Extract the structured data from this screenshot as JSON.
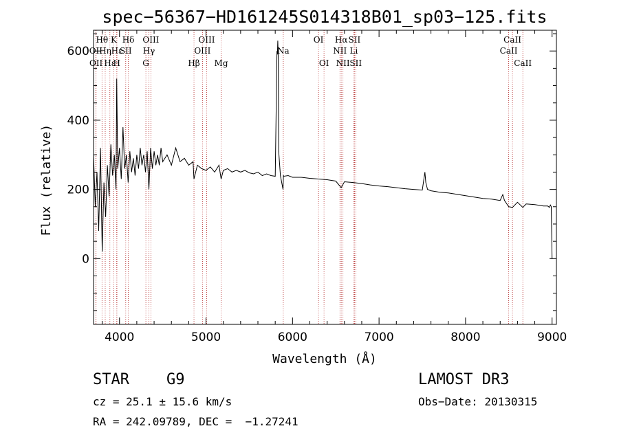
{
  "chart_data": {
    "type": "line",
    "title": "spec−56367−HD161245S014318B01_sp03−125.fits",
    "xlabel": "Wavelength (Å)",
    "ylabel": "Flux (relative)",
    "xlim": [
      3700,
      9050
    ],
    "ylim": [
      -190,
      660
    ],
    "xticks": [
      4000,
      5000,
      6000,
      7000,
      8000,
      9000
    ],
    "yticks": [
      0,
      200,
      400,
      600
    ],
    "series": [
      {
        "name": "flux",
        "x": [
          3700,
          3720,
          3740,
          3760,
          3780,
          3800,
          3820,
          3840,
          3860,
          3880,
          3900,
          3920,
          3940,
          3960,
          3968,
          3980,
          4000,
          4020,
          4040,
          4060,
          4080,
          4100,
          4120,
          4140,
          4160,
          4180,
          4200,
          4220,
          4240,
          4260,
          4280,
          4300,
          4320,
          4340,
          4360,
          4380,
          4400,
          4420,
          4440,
          4460,
          4480,
          4500,
          4550,
          4600,
          4650,
          4700,
          4750,
          4800,
          4850,
          4861,
          4900,
          4950,
          5000,
          5050,
          5100,
          5150,
          5175,
          5200,
          5250,
          5300,
          5350,
          5400,
          5450,
          5500,
          5550,
          5600,
          5650,
          5700,
          5750,
          5800,
          5820,
          5825,
          5830,
          5835,
          5840,
          5860,
          5890,
          5895,
          5900,
          5950,
          6000,
          6100,
          6200,
          6300,
          6400,
          6500,
          6563,
          6600,
          6700,
          6800,
          6900,
          7000,
          7100,
          7200,
          7300,
          7400,
          7500,
          7530,
          7540,
          7560,
          7600,
          7700,
          7800,
          7900,
          8000,
          8100,
          8200,
          8300,
          8400,
          8430,
          8450,
          8498,
          8542,
          8600,
          8662,
          8700,
          8800,
          8900,
          8950,
          8970,
          8980,
          8990,
          9000
        ],
        "values": [
          300,
          150,
          250,
          80,
          320,
          20,
          220,
          120,
          270,
          180,
          330,
          240,
          300,
          200,
          520,
          260,
          320,
          230,
          380,
          260,
          300,
          220,
          310,
          250,
          290,
          240,
          300,
          260,
          320,
          270,
          300,
          250,
          310,
          200,
          320,
          260,
          310,
          270,
          300,
          270,
          320,
          280,
          300,
          270,
          320,
          280,
          290,
          270,
          280,
          230,
          270,
          260,
          255,
          265,
          250,
          270,
          230,
          255,
          260,
          250,
          255,
          250,
          255,
          248,
          245,
          250,
          240,
          245,
          240,
          238,
          600,
          590,
          630,
          580,
          310,
          240,
          200,
          240,
          238,
          240,
          235,
          235,
          232,
          230,
          228,
          224,
          205,
          222,
          220,
          217,
          213,
          210,
          208,
          205,
          202,
          200,
          198,
          250,
          220,
          200,
          196,
          192,
          190,
          186,
          182,
          178,
          174,
          172,
          168,
          185,
          168,
          150,
          148,
          163,
          148,
          158,
          156,
          152,
          152,
          148,
          155,
          150,
          0
        ]
      }
    ],
    "spectral_lines": [
      {
        "label": "Hθ",
        "wl": 3798,
        "row": 0
      },
      {
        "label": "OII",
        "wl": 3727,
        "row": 1
      },
      {
        "label": "OII",
        "wl": 3729,
        "row": 2
      },
      {
        "label": "Hη",
        "wl": 3835,
        "row": 1
      },
      {
        "label": "Hε",
        "wl": 3889,
        "row": 2
      },
      {
        "label": "Hε",
        "wl": 3970,
        "row": 1
      },
      {
        "label": "K",
        "wl": 3934,
        "row": 0
      },
      {
        "label": "H",
        "wl": 3968,
        "row": 2
      },
      {
        "label": "SII",
        "wl": 4072,
        "row": 1
      },
      {
        "label": "Hδ",
        "wl": 4102,
        "row": 0
      },
      {
        "label": "OIII",
        "wl": 4363,
        "row": 0
      },
      {
        "label": "Hγ",
        "wl": 4340,
        "row": 1
      },
      {
        "label": "G",
        "wl": 4305,
        "row": 2
      },
      {
        "label": "Hβ",
        "wl": 4861,
        "row": 2
      },
      {
        "label": "OIII",
        "wl": 5007,
        "row": 0
      },
      {
        "label": "OIII",
        "wl": 4959,
        "row": 1
      },
      {
        "label": "Mg",
        "wl": 5175,
        "row": 2
      },
      {
        "label": "Na",
        "wl": 5893,
        "row": 1
      },
      {
        "label": "OI",
        "wl": 6300,
        "row": 0
      },
      {
        "label": "OI",
        "wl": 6364,
        "row": 2
      },
      {
        "label": "Hα",
        "wl": 6563,
        "row": 0
      },
      {
        "label": "SII",
        "wl": 6716,
        "row": 0
      },
      {
        "label": "NII",
        "wl": 6548,
        "row": 1
      },
      {
        "label": "Li",
        "wl": 6708,
        "row": 1
      },
      {
        "label": "NII",
        "wl": 6583,
        "row": 2
      },
      {
        "label": "SII",
        "wl": 6731,
        "row": 2
      },
      {
        "label": "CaII",
        "wl": 8542,
        "row": 0
      },
      {
        "label": "CaII",
        "wl": 8498,
        "row": 1
      },
      {
        "label": "CaII",
        "wl": 8662,
        "row": 2
      }
    ],
    "colors": {
      "line": "#000000",
      "marker": "#b22222"
    }
  },
  "info": {
    "class_label": "STAR",
    "subclass": "G9",
    "survey": "LAMOST DR3",
    "redshift_line": "cz = 25.1 ± 15.6 km/s",
    "obs_date": "Obs−Date: 20130315",
    "coords": "RA = 242.09789, DEC =  −1.27241"
  }
}
